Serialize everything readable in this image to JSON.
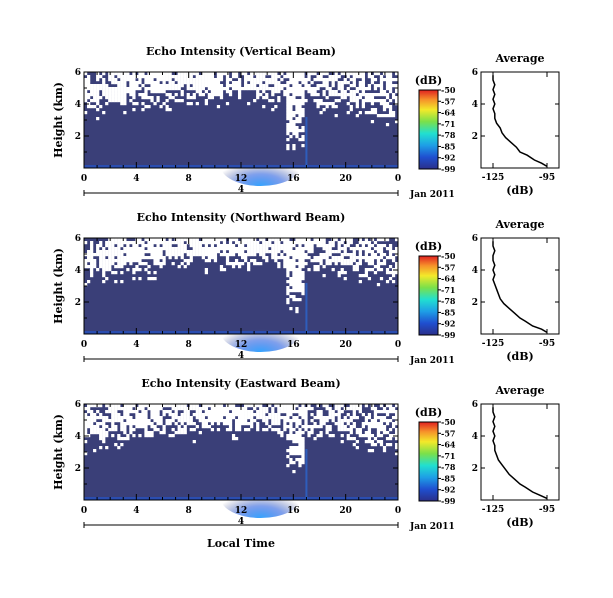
{
  "chart_data": [
    {
      "type": "heatmap",
      "title": "Echo Intensity (Vertical Beam)",
      "ylabel": "Height (km)",
      "yticks": [
        "6",
        "4",
        "2"
      ],
      "xticks": [
        "0",
        "4",
        "8",
        "12",
        "16",
        "20",
        "0"
      ],
      "date_marker": "4",
      "date_label": "Jan 2011",
      "xlim": [
        0,
        24
      ],
      "ylim": [
        0,
        6
      ],
      "colorbar": {
        "unit": "(dB)",
        "ticks": [
          "-50",
          "-57",
          "-64",
          "-71",
          "-78",
          "-85",
          "-92",
          "-99"
        ],
        "range": [
          -99,
          -50
        ]
      },
      "profile": {
        "title": "Average",
        "xlabel": "(dB)",
        "xticks": [
          "-125",
          "-95"
        ],
        "yticks": [
          "6",
          "4",
          "2"
        ],
        "heights": [
          0.1,
          0.3,
          0.5,
          0.8,
          1.0,
          1.3,
          1.6,
          1.9,
          2.2,
          2.5,
          2.8,
          3.1,
          3.4,
          3.7,
          4.0,
          4.3,
          4.6,
          4.9,
          5.2,
          5.5,
          5.8
        ],
        "values": [
          -95,
          -98,
          -102,
          -106,
          -110,
          -112,
          -115,
          -118,
          -120,
          -121,
          -123,
          -124,
          -124,
          -125,
          -124,
          -125,
          -124,
          -125,
          -124,
          -125,
          -125
        ]
      }
    },
    {
      "type": "heatmap",
      "title": "Echo Intensity (Northward Beam)",
      "ylabel": "Height (km)",
      "yticks": [
        "6",
        "4",
        "2"
      ],
      "xticks": [
        "0",
        "4",
        "8",
        "12",
        "16",
        "20",
        "0"
      ],
      "date_marker": "4",
      "date_label": "Jan 2011",
      "xlim": [
        0,
        24
      ],
      "ylim": [
        0,
        6
      ],
      "colorbar": {
        "unit": "(dB)",
        "ticks": [
          "-50",
          "-57",
          "-64",
          "-71",
          "-78",
          "-85",
          "-92",
          "-99"
        ],
        "range": [
          -99,
          -50
        ]
      },
      "profile": {
        "title": "Average",
        "xlabel": "(dB)",
        "xticks": [
          "-125",
          "-95"
        ],
        "yticks": [
          "6",
          "4",
          "2"
        ],
        "heights": [
          0.1,
          0.3,
          0.5,
          0.8,
          1.0,
          1.3,
          1.6,
          1.9,
          2.2,
          2.5,
          2.8,
          3.1,
          3.4,
          3.7,
          4.0,
          4.3,
          4.6,
          4.9,
          5.2,
          5.5,
          5.8
        ],
        "values": [
          -95,
          -98,
          -103,
          -107,
          -110,
          -113,
          -116,
          -119,
          -121,
          -122,
          -123,
          -124,
          -125,
          -124,
          -125,
          -124,
          -125,
          -125,
          -124,
          -125,
          -125
        ]
      }
    },
    {
      "type": "heatmap",
      "title": "Echo Intensity (Eastward Beam)",
      "ylabel": "Height (km)",
      "yticks": [
        "6",
        "4",
        "2"
      ],
      "xticks": [
        "0",
        "4",
        "8",
        "12",
        "16",
        "20",
        "0"
      ],
      "date_marker": "4",
      "date_label": "Jan 2011",
      "xlim": [
        0,
        24
      ],
      "ylim": [
        0,
        6
      ],
      "xlabel": "Local Time",
      "colorbar": {
        "unit": "(dB)",
        "ticks": [
          "-50",
          "-57",
          "-64",
          "-71",
          "-78",
          "-85",
          "-92",
          "-99"
        ],
        "range": [
          -99,
          -50
        ]
      },
      "profile": {
        "title": "Average",
        "xlabel": "(dB)",
        "xticks": [
          "-125",
          "-95"
        ],
        "yticks": [
          "6",
          "4",
          "2"
        ],
        "heights": [
          0.1,
          0.3,
          0.5,
          0.8,
          1.0,
          1.3,
          1.6,
          1.9,
          2.2,
          2.5,
          2.8,
          3.1,
          3.4,
          3.7,
          4.0,
          4.3,
          4.6,
          4.9,
          5.2,
          5.5,
          5.8
        ],
        "values": [
          -95,
          -99,
          -103,
          -107,
          -110,
          -113,
          -116,
          -118,
          -120,
          -122,
          -123,
          -124,
          -124,
          -125,
          -124,
          -125,
          -124,
          -125,
          -124,
          -125,
          -125
        ]
      }
    }
  ],
  "colors": {
    "background": "#3a3f78",
    "empty": "#ffffff",
    "foreground": "#000000"
  }
}
